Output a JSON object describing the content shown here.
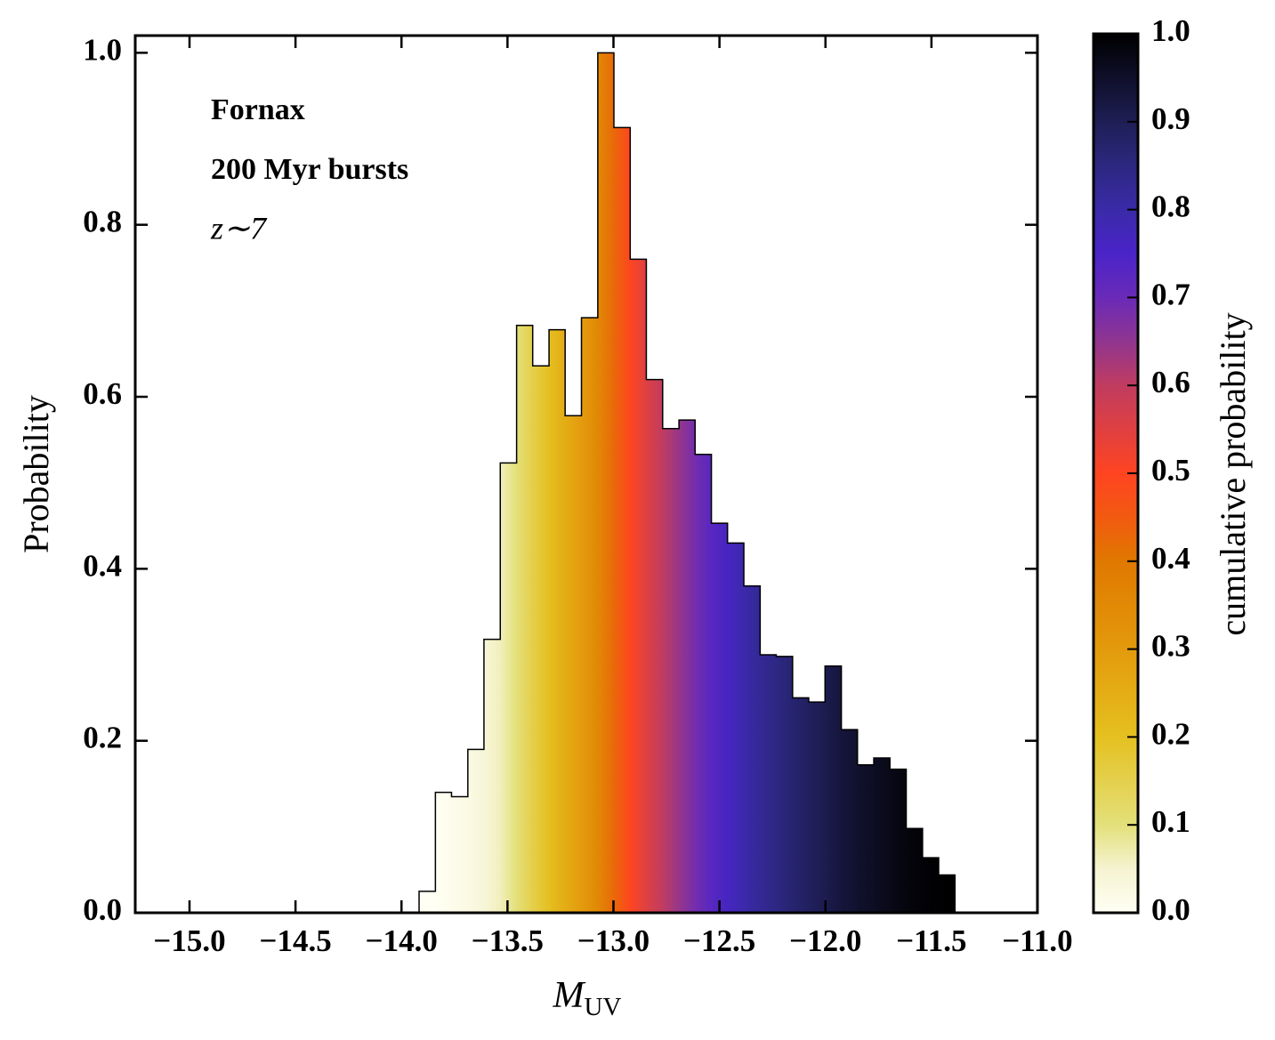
{
  "chart_data": {
    "type": "histogram",
    "xlabel": [
      "M",
      "UV"
    ],
    "ylabel": "Probability",
    "annotations": [
      "Fornax",
      "200 Myr bursts",
      "z∼7"
    ],
    "bins": [
      -13.917,
      -13.84,
      -13.764,
      -13.687,
      -13.611,
      -13.534,
      -13.457,
      -13.381,
      -13.304,
      -13.228,
      -13.151,
      -13.074,
      -12.998,
      -12.921,
      -12.845,
      -12.768,
      -12.691,
      -12.615,
      -12.538,
      -12.462,
      -12.385,
      -12.308,
      -12.232,
      -12.155,
      -12.079,
      -12.002,
      -11.925,
      -11.849,
      -11.772,
      -11.696,
      -11.619,
      -11.542,
      -11.466,
      -11.389
    ],
    "values": [
      0.025,
      0.14,
      0.135,
      0.19,
      0.318,
      0.523,
      0.683,
      0.636,
      0.678,
      0.578,
      0.692,
      1.0,
      0.913,
      0.76,
      0.62,
      0.563,
      0.573,
      0.533,
      0.453,
      0.43,
      0.38,
      0.3,
      0.298,
      0.25,
      0.245,
      0.287,
      0.213,
      0.172,
      0.18,
      0.167,
      0.098,
      0.064,
      0.044
    ],
    "xlim": [
      -15.256,
      -11.0
    ],
    "ylim": [
      0,
      1.02
    ],
    "xticks": [
      {
        "value": -15.0,
        "label": "−15.0"
      },
      {
        "value": -14.5,
        "label": "−14.5"
      },
      {
        "value": -14.0,
        "label": "−14.0"
      },
      {
        "value": -13.5,
        "label": "−13.5"
      },
      {
        "value": -13.0,
        "label": "−13.0"
      },
      {
        "value": -12.5,
        "label": "−12.5"
      },
      {
        "value": -12.0,
        "label": "−12.0"
      },
      {
        "value": -11.5,
        "label": "−11.5"
      },
      {
        "value": -11.0,
        "label": "−11.0"
      }
    ],
    "yticks": [
      {
        "value": 0,
        "label": "0.0"
      },
      0.2,
      0.4,
      0.6,
      0.8,
      {
        "value": 1,
        "label": "1.0"
      }
    ],
    "colorbar": {
      "label": "cumulative probability",
      "lim": [
        0,
        1
      ],
      "ticks": [
        {
          "value": 0,
          "label": "0.0"
        },
        0.1,
        0.2,
        0.3,
        0.4,
        0.5,
        0.6,
        0.7,
        0.8,
        0.9,
        {
          "value": 1,
          "label": "1.0"
        }
      ],
      "colormap": [
        {
          "value": 0.0,
          "color": "#fffff5"
        },
        {
          "value": 0.05,
          "color": "#f5f3d0"
        },
        {
          "value": 0.1,
          "color": "#e3e07a"
        },
        {
          "value": 0.2,
          "color": "#e5c020"
        },
        {
          "value": 0.3,
          "color": "#e39a0c"
        },
        {
          "value": 0.4,
          "color": "#e07800"
        },
        {
          "value": 0.45,
          "color": "#f25a10"
        },
        {
          "value": 0.5,
          "color": "#ff4422"
        },
        {
          "value": 0.6,
          "color": "#c03c60"
        },
        {
          "value": 0.65,
          "color": "#903590"
        },
        {
          "value": 0.7,
          "color": "#6a2ab8"
        },
        {
          "value": 0.75,
          "color": "#4a24c8"
        },
        {
          "value": 0.8,
          "color": "#3a2aa8"
        },
        {
          "value": 0.85,
          "color": "#2c2880"
        },
        {
          "value": 0.9,
          "color": "#1e1e55"
        },
        {
          "value": 0.95,
          "color": "#0f0f2a"
        },
        {
          "value": 1.0,
          "color": "#000000"
        }
      ]
    },
    "edgecolor": "#000000"
  }
}
